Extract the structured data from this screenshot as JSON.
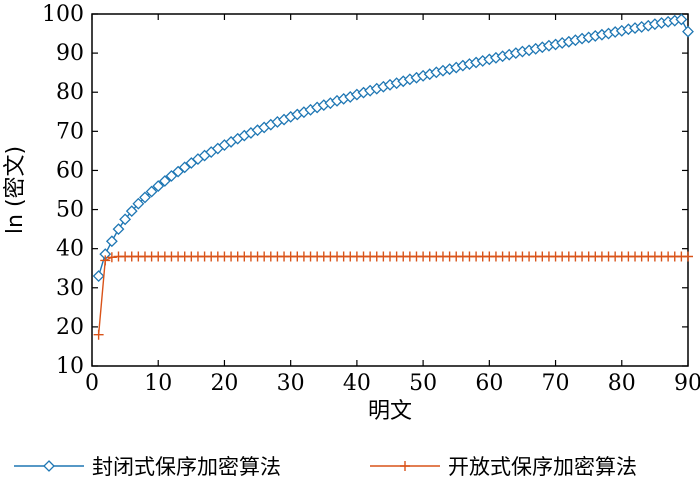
{
  "chart_data": {
    "type": "line",
    "xlabel": "明文",
    "ylabel": "ln (密文)",
    "xlim": [
      0,
      90
    ],
    "ylim": [
      10,
      100
    ],
    "xticks": [
      0,
      10,
      20,
      30,
      40,
      50,
      60,
      70,
      80,
      90
    ],
    "yticks": [
      10,
      20,
      30,
      40,
      50,
      60,
      70,
      80,
      90,
      100
    ],
    "grid": false,
    "legend_position": "bottom",
    "series": [
      {
        "name": "封闭式保序加密算法",
        "color": "#1f77b4",
        "marker": "diamond",
        "x": [
          1,
          2,
          3,
          4,
          5,
          6,
          7,
          8,
          9,
          10,
          11,
          12,
          13,
          14,
          15,
          16,
          17,
          18,
          19,
          20,
          21,
          22,
          23,
          24,
          25,
          26,
          27,
          28,
          29,
          30,
          31,
          32,
          33,
          34,
          35,
          36,
          37,
          38,
          39,
          40,
          41,
          42,
          43,
          44,
          45,
          46,
          47,
          48,
          49,
          50,
          51,
          52,
          53,
          54,
          55,
          56,
          57,
          58,
          59,
          60,
          61,
          62,
          63,
          64,
          65,
          66,
          67,
          68,
          69,
          70,
          71,
          72,
          73,
          74,
          75,
          76,
          77,
          78,
          79,
          80,
          81,
          82,
          83,
          84,
          85,
          86,
          87,
          88,
          89,
          90
        ],
        "y": [
          33.0,
          38.6,
          41.9,
          45.0,
          47.5,
          49.6,
          51.5,
          53.1,
          54.6,
          56.0,
          57.3,
          58.6,
          59.7,
          60.8,
          61.9,
          62.9,
          63.8,
          64.7,
          65.6,
          66.5,
          67.3,
          68.1,
          68.9,
          69.6,
          70.3,
          71.0,
          71.7,
          72.4,
          73.0,
          73.7,
          74.3,
          74.9,
          75.5,
          76.1,
          76.7,
          77.2,
          77.8,
          78.3,
          78.8,
          79.4,
          79.9,
          80.4,
          80.9,
          81.4,
          81.9,
          82.3,
          82.8,
          83.3,
          83.7,
          84.2,
          84.6,
          85.1,
          85.5,
          85.9,
          86.3,
          86.8,
          87.2,
          87.6,
          88.0,
          88.4,
          88.8,
          89.2,
          89.6,
          90.0,
          90.4,
          90.7,
          91.1,
          91.5,
          91.9,
          92.2,
          92.6,
          92.9,
          93.3,
          93.7,
          94.0,
          94.4,
          94.7,
          95.0,
          95.4,
          95.7,
          96.1,
          96.4,
          96.7,
          97.0,
          97.4,
          97.7,
          98.0,
          98.3,
          98.6,
          95.5
        ]
      },
      {
        "name": "开放式保序加密算法",
        "color": "#d95319",
        "marker": "plus",
        "x": [
          1,
          2,
          3,
          4,
          5,
          6,
          7,
          8,
          9,
          10,
          11,
          12,
          13,
          14,
          15,
          16,
          17,
          18,
          19,
          20,
          21,
          22,
          23,
          24,
          25,
          26,
          27,
          28,
          29,
          30,
          31,
          32,
          33,
          34,
          35,
          36,
          37,
          38,
          39,
          40,
          41,
          42,
          43,
          44,
          45,
          46,
          47,
          48,
          49,
          50,
          51,
          52,
          53,
          54,
          55,
          56,
          57,
          58,
          59,
          60,
          61,
          62,
          63,
          64,
          65,
          66,
          67,
          68,
          69,
          70,
          71,
          72,
          73,
          74,
          75,
          76,
          77,
          78,
          79,
          80,
          81,
          82,
          83,
          84,
          85,
          86,
          87,
          88,
          89,
          90
        ],
        "y": [
          18,
          37,
          37.8,
          38,
          38,
          38,
          38,
          38,
          38,
          38,
          38,
          38,
          38,
          38,
          38,
          38,
          38,
          38,
          38,
          38,
          38,
          38,
          38,
          38,
          38,
          38,
          38,
          38,
          38,
          38,
          38,
          38,
          38,
          38,
          38,
          38,
          38,
          38,
          38,
          38,
          38,
          38,
          38,
          38,
          38,
          38,
          38,
          38,
          38,
          38,
          38,
          38,
          38,
          38,
          38,
          38,
          38,
          38,
          38,
          38,
          38,
          38,
          38,
          38,
          38,
          38,
          38,
          38,
          38,
          38,
          38,
          38,
          38,
          38,
          38,
          38,
          38,
          38,
          38,
          38,
          38,
          38,
          38,
          38,
          38,
          38,
          38,
          38,
          38,
          38
        ]
      }
    ]
  }
}
